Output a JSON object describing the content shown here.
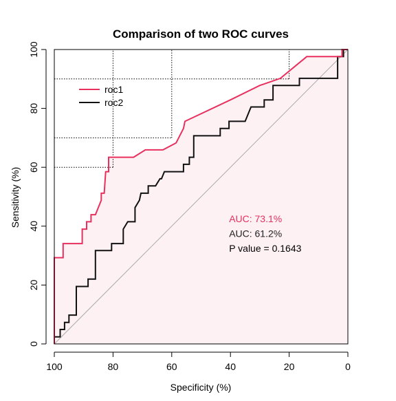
{
  "chart_data": {
    "type": "line",
    "title": "Comparison of two ROC curves",
    "xlabel": "Specificity (%)",
    "ylabel": "Sensitivity (%)",
    "xlim": [
      100,
      0
    ],
    "ylim": [
      0,
      100
    ],
    "x_reversed": true,
    "xticks": [
      "100",
      "80",
      "60",
      "40",
      "20",
      "0"
    ],
    "yticks": [
      "0",
      "20",
      "40",
      "60",
      "80",
      "100"
    ],
    "grid": false,
    "legend_position": "top-left",
    "reference_line": "diagonal",
    "shaded_area_color": "#fdf1f3",
    "highlight_guides": [
      {
        "specificity": 80,
        "sensitivity": 60
      },
      {
        "specificity": 60,
        "sensitivity": 70
      },
      {
        "specificity": 20,
        "sensitivity": 90
      }
    ],
    "series": [
      {
        "name": "roc1",
        "color": "#e8305e",
        "points": [
          [
            100,
            0
          ],
          [
            100,
            29.3
          ],
          [
            97,
            29.3
          ],
          [
            97,
            34.1
          ],
          [
            90.5,
            34.1
          ],
          [
            90.5,
            39
          ],
          [
            89,
            39
          ],
          [
            89,
            41.5
          ],
          [
            87.5,
            41.5
          ],
          [
            87.5,
            43.9
          ],
          [
            86,
            43.9
          ],
          [
            84,
            48.8
          ],
          [
            84,
            51.2
          ],
          [
            83,
            51.2
          ],
          [
            82.5,
            58.5
          ],
          [
            81.5,
            58.5
          ],
          [
            81.5,
            63.4
          ],
          [
            73,
            63.4
          ],
          [
            69,
            65.9
          ],
          [
            63,
            65.9
          ],
          [
            58.5,
            68.3
          ],
          [
            56,
            73.2
          ],
          [
            55.5,
            75.6
          ],
          [
            40,
            82.9
          ],
          [
            30,
            87.8
          ],
          [
            23,
            90.2
          ],
          [
            14,
            97.6
          ],
          [
            2,
            97.6
          ],
          [
            2,
            100
          ],
          [
            0,
            100
          ]
        ]
      },
      {
        "name": "roc2",
        "color": "#111111",
        "points": [
          [
            100,
            0
          ],
          [
            100,
            2.4
          ],
          [
            98,
            2.4
          ],
          [
            98,
            4.9
          ],
          [
            96.5,
            4.9
          ],
          [
            96.5,
            7.3
          ],
          [
            95,
            7.3
          ],
          [
            95,
            9.8
          ],
          [
            92.5,
            9.8
          ],
          [
            92.5,
            19.5
          ],
          [
            88.5,
            19.5
          ],
          [
            88.5,
            22
          ],
          [
            86,
            22
          ],
          [
            86,
            31.7
          ],
          [
            80.5,
            31.7
          ],
          [
            80.5,
            34.1
          ],
          [
            76.5,
            34.1
          ],
          [
            76.5,
            39
          ],
          [
            75,
            41.5
          ],
          [
            72.5,
            41.5
          ],
          [
            72.5,
            46.3
          ],
          [
            71,
            48.8
          ],
          [
            70.5,
            51.2
          ],
          [
            68,
            51.2
          ],
          [
            68,
            53.7
          ],
          [
            65.5,
            53.7
          ],
          [
            64,
            56.1
          ],
          [
            63.5,
            56.1
          ],
          [
            62.5,
            58.5
          ],
          [
            56,
            58.5
          ],
          [
            56,
            61
          ],
          [
            54,
            61
          ],
          [
            54,
            63.4
          ],
          [
            52.5,
            63.4
          ],
          [
            52.5,
            70.7
          ],
          [
            43.5,
            70.7
          ],
          [
            43.5,
            73.2
          ],
          [
            40.5,
            73.2
          ],
          [
            40.5,
            75.6
          ],
          [
            35,
            75.6
          ],
          [
            33,
            80.5
          ],
          [
            28.5,
            80.5
          ],
          [
            28.5,
            82.9
          ],
          [
            25.5,
            82.9
          ],
          [
            25.5,
            87.8
          ],
          [
            16.5,
            87.8
          ],
          [
            16.5,
            90.2
          ],
          [
            3.5,
            90.2
          ],
          [
            3.5,
            97.6
          ],
          [
            1.5,
            97.6
          ],
          [
            1.5,
            100
          ],
          [
            0,
            100
          ]
        ]
      }
    ],
    "annotations": [
      {
        "text": "AUC: 73.1%",
        "color": "#e8305e",
        "specificity": 40,
        "sensitivity": 42.5
      },
      {
        "text": "AUC: 61.2%",
        "color": "#222222",
        "specificity": 40,
        "sensitivity": 37.5
      },
      {
        "text": "P value = 0.1643",
        "color": "#000000",
        "specificity": 40,
        "sensitivity": 32.5
      }
    ]
  }
}
